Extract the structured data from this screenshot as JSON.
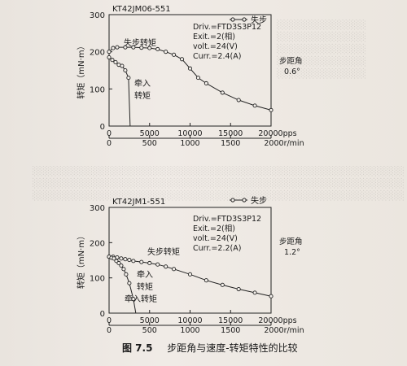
{
  "chart_data": [
    {
      "type": "line",
      "title": "KT42JM06-551",
      "ylabel": "转矩（mN·m）",
      "ylim": [
        0,
        300
      ],
      "xlim": [
        0,
        20000
      ],
      "xticks": [
        0,
        5000,
        10000,
        15000,
        20000
      ],
      "xunit_primary": "pps",
      "xticks_secondary": [
        0,
        500,
        1000,
        1500,
        2000
      ],
      "xunit_secondary": "r/min",
      "yticks": [
        0,
        100,
        200,
        300
      ],
      "legend": "失步",
      "legend_position": "top-right",
      "info": [
        "Driv.=FTD3S3P12",
        "Exit.=2(相)",
        "volt.=24(V)",
        "Curr.=2.4(A)"
      ],
      "step_angle_label": "步距角",
      "step_angle_value": "0.6°",
      "annotations": [
        "失步转矩",
        "牵入",
        "转矩"
      ],
      "series": [
        {
          "values_x": [
            0,
            500,
            1000,
            2000,
            3000,
            4000,
            5000,
            6000,
            7000,
            8000,
            9000,
            10000,
            11000,
            12000,
            14000,
            16000,
            18000,
            20000
          ],
          "values_y": [
            200,
            210,
            212,
            212,
            212,
            211,
            210,
            207,
            200,
            192,
            180,
            155,
            130,
            115,
            90,
            70,
            55,
            43
          ]
        },
        {
          "values_x": [
            0,
            400,
            800,
            1200,
            1600,
            2000,
            2400,
            2600
          ],
          "values_y": [
            185,
            178,
            172,
            165,
            162,
            150,
            130,
            0
          ]
        }
      ]
    },
    {
      "type": "line",
      "title": "KT42JM1-551",
      "ylabel": "转矩（mN·m）",
      "ylim": [
        0,
        300
      ],
      "xlim": [
        0,
        20000
      ],
      "xticks": [
        0,
        5000,
        10000,
        15000,
        20000
      ],
      "xunit_primary": "pps",
      "xticks_secondary": [
        0,
        500,
        1000,
        1500,
        2000
      ],
      "xunit_secondary": "r/min",
      "yticks": [
        0,
        100,
        200,
        300
      ],
      "legend": "失步",
      "legend_position": "top-right",
      "info": [
        "Driv.=FTD3S3P12",
        "Exit.=2(相)",
        "volt.=24(V)",
        "Curr.=2.2(A)"
      ],
      "step_angle_label": "步距角",
      "step_angle_value": "1.2°",
      "annotations": [
        "失步转矩",
        "牵入",
        "转矩",
        "牵入转矩"
      ],
      "series": [
        {
          "values_x": [
            0,
            500,
            1000,
            1500,
            2000,
            2500,
            3000,
            4000,
            5000,
            6000,
            7000,
            8000,
            10000,
            12000,
            14000,
            16000,
            18000,
            20000
          ],
          "values_y": [
            160,
            160,
            158,
            155,
            153,
            151,
            148,
            145,
            142,
            138,
            132,
            125,
            110,
            93,
            80,
            68,
            58,
            48
          ]
        },
        {
          "values_x": [
            0,
            300,
            600,
            900,
            1200,
            1500,
            1800,
            2100,
            2500,
            3000,
            3300
          ],
          "values_y": [
            160,
            157,
            155,
            148,
            142,
            135,
            125,
            110,
            85,
            40,
            0
          ]
        }
      ]
    }
  ],
  "caption": {
    "number": "图 7.5",
    "text": "步距角与速度-转矩特性的比较"
  }
}
